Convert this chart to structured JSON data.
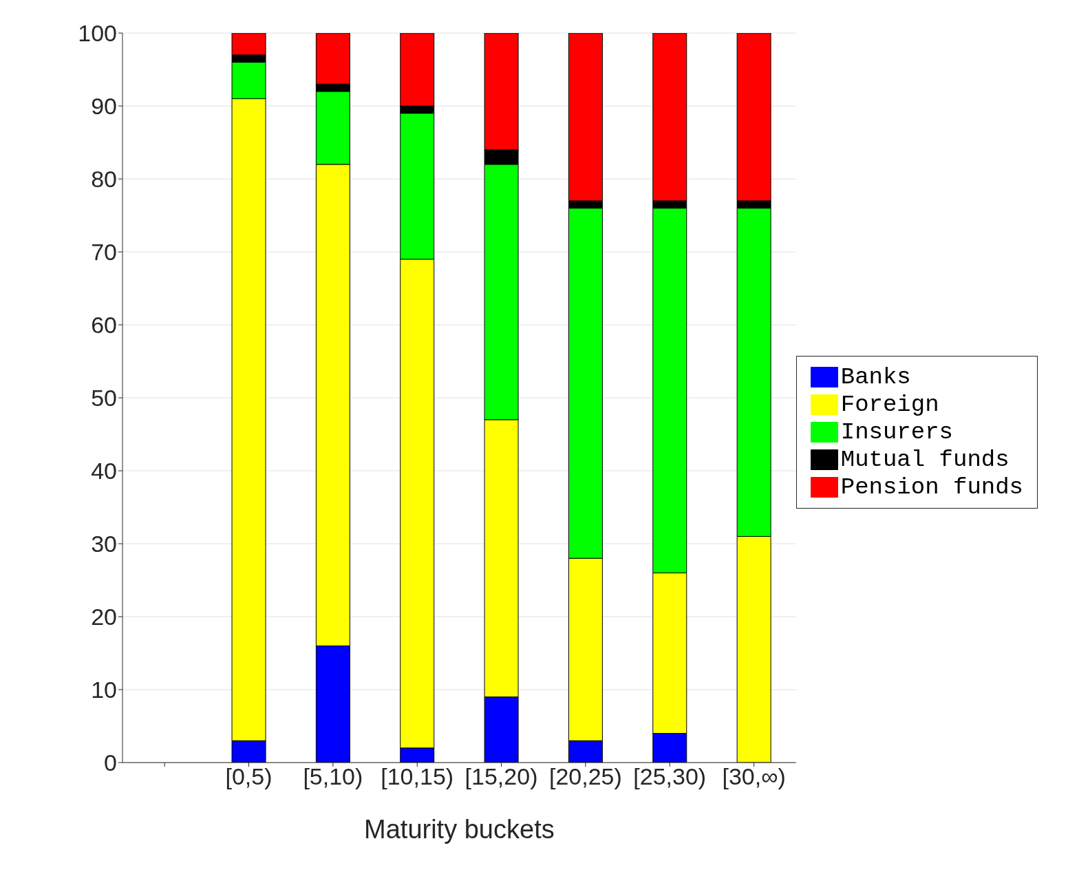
{
  "chart_data": {
    "type": "bar",
    "stacked": true,
    "xlabel": "Maturity buckets",
    "categories": [
      null,
      "[0,5)",
      "[5,10)",
      "[10,15)",
      "[15,20)",
      "[20,25)",
      "[25,30)",
      "[30,∞)"
    ],
    "series": [
      {
        "name": "Banks",
        "color": "#0000ff",
        "values": [
          null,
          3,
          16,
          2,
          9,
          3,
          4,
          0
        ]
      },
      {
        "name": "Foreign",
        "color": "#ffff00",
        "values": [
          null,
          88,
          66,
          67,
          38,
          25,
          22,
          31
        ]
      },
      {
        "name": "Insurers",
        "color": "#00ff00",
        "values": [
          null,
          5,
          10,
          20,
          35,
          48,
          50,
          45
        ]
      },
      {
        "name": "Mutual funds",
        "color": "#000000",
        "values": [
          null,
          1,
          1,
          1,
          2,
          1,
          1,
          1
        ]
      },
      {
        "name": "Pension funds",
        "color": "#ff0000",
        "values": [
          null,
          3,
          7,
          10,
          16,
          23,
          23,
          23
        ]
      }
    ],
    "ylim": [
      0,
      100
    ],
    "yticks": [
      0,
      10,
      20,
      30,
      40,
      50,
      60,
      70,
      80,
      90,
      100
    ],
    "grid": "y",
    "legend": "right"
  }
}
